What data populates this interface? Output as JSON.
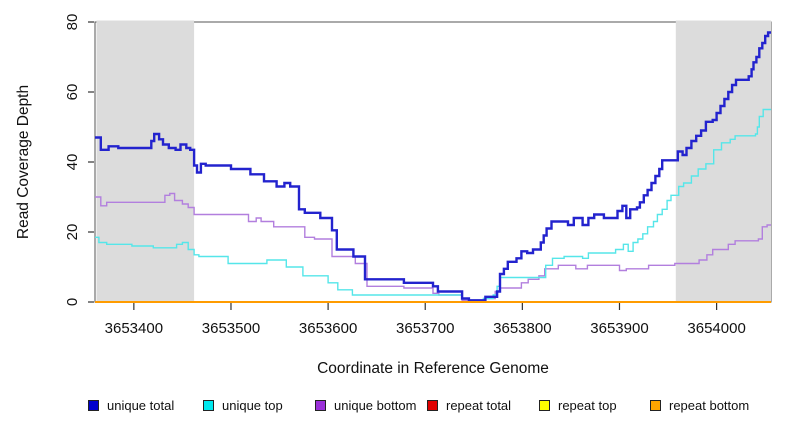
{
  "figure": {
    "x_axis_title": "Coordinate in Reference Genome",
    "y_axis_title": "Read Coverage Depth"
  },
  "chart_data": {
    "type": "line",
    "subtype": "step",
    "title": "",
    "xlabel": "Coordinate in Reference Genome",
    "ylabel": "Read Coverage Depth",
    "xlim": [
      3653360,
      3654056
    ],
    "ylim": [
      0,
      80
    ],
    "x_ticks": [
      3653400,
      3653500,
      3653600,
      3653700,
      3653800,
      3653900,
      3654000
    ],
    "y_ticks": [
      0,
      20,
      40,
      60,
      80
    ],
    "grid": false,
    "legend_position": "bottom",
    "box_color": "#555555",
    "shaded_regions": [
      {
        "x0": 3653360,
        "x1": 3653462,
        "color": "#dcdcdc"
      },
      {
        "x0": 3653958,
        "x1": 3654056,
        "color": "#dcdcdc"
      }
    ],
    "series": [
      {
        "name": "unique total",
        "color": "#2323ce",
        "width": 2.4,
        "points": [
          [
            3653360,
            47
          ],
          [
            3653366,
            43.5
          ],
          [
            3653374,
            44.5
          ],
          [
            3653384,
            44
          ],
          [
            3653418,
            46
          ],
          [
            3653421,
            48
          ],
          [
            3653426,
            46.5
          ],
          [
            3653430,
            45
          ],
          [
            3653436,
            44
          ],
          [
            3653443,
            43.5
          ],
          [
            3653448,
            45
          ],
          [
            3653454,
            44
          ],
          [
            3653458,
            43.5
          ],
          [
            3653462,
            39
          ],
          [
            3653465,
            37
          ],
          [
            3653469,
            39.5
          ],
          [
            3653474,
            39
          ],
          [
            3653500,
            38
          ],
          [
            3653520,
            36.5
          ],
          [
            3653534,
            34.5
          ],
          [
            3653547,
            33
          ],
          [
            3653555,
            34
          ],
          [
            3653561,
            33
          ],
          [
            3653570,
            26.5
          ],
          [
            3653576,
            25.5
          ],
          [
            3653592,
            24
          ],
          [
            3653604,
            20.5
          ],
          [
            3653609,
            15
          ],
          [
            3653626,
            13
          ],
          [
            3653638,
            6.5
          ],
          [
            3653678,
            5.5
          ],
          [
            3653708,
            4.5
          ],
          [
            3653713,
            3
          ],
          [
            3653738,
            1
          ],
          [
            3653745,
            0.5
          ],
          [
            3653762,
            1.5
          ],
          [
            3653774,
            3
          ],
          [
            3653777,
            8
          ],
          [
            3653781,
            9.5
          ],
          [
            3653785,
            11.5
          ],
          [
            3653794,
            12.5
          ],
          [
            3653799,
            14.5
          ],
          [
            3653805,
            14
          ],
          [
            3653811,
            15
          ],
          [
            3653819,
            17
          ],
          [
            3653822,
            19
          ],
          [
            3653825,
            21
          ],
          [
            3653830,
            23
          ],
          [
            3653847,
            22
          ],
          [
            3653853,
            24
          ],
          [
            3653862,
            22
          ],
          [
            3653868,
            24
          ],
          [
            3653874,
            25
          ],
          [
            3653884,
            24
          ],
          [
            3653898,
            26
          ],
          [
            3653903,
            27.5
          ],
          [
            3653907,
            24
          ],
          [
            3653911,
            26.5
          ],
          [
            3653918,
            27
          ],
          [
            3653921,
            28.5
          ],
          [
            3653925,
            30.5
          ],
          [
            3653929,
            32
          ],
          [
            3653933,
            34
          ],
          [
            3653937,
            36
          ],
          [
            3653941,
            38
          ],
          [
            3653944,
            40.5
          ],
          [
            3653960,
            43
          ],
          [
            3653965,
            42
          ],
          [
            3653969,
            44
          ],
          [
            3653974,
            46
          ],
          [
            3653979,
            47.5
          ],
          [
            3653984,
            49
          ],
          [
            3653989,
            51.5
          ],
          [
            3653996,
            52
          ],
          [
            3654000,
            54
          ],
          [
            3654004,
            56
          ],
          [
            3654008,
            58
          ],
          [
            3654012,
            60
          ],
          [
            3654016,
            62
          ],
          [
            3654020,
            63.5
          ],
          [
            3654033,
            64.5
          ],
          [
            3654036,
            66.5
          ],
          [
            3654038,
            68.5
          ],
          [
            3654041,
            70
          ],
          [
            3654044,
            72.5
          ],
          [
            3654047,
            74
          ],
          [
            3654050,
            76
          ],
          [
            3654053,
            77
          ]
        ]
      },
      {
        "name": "unique top",
        "color": "#55e6e9",
        "width": 1.4,
        "points": [
          [
            3653360,
            18.5
          ],
          [
            3653364,
            17
          ],
          [
            3653372,
            16.5
          ],
          [
            3653398,
            16
          ],
          [
            3653420,
            15.5
          ],
          [
            3653444,
            16.5
          ],
          [
            3653450,
            17
          ],
          [
            3653456,
            15
          ],
          [
            3653462,
            13.5
          ],
          [
            3653467,
            13
          ],
          [
            3653497,
            11
          ],
          [
            3653537,
            12
          ],
          [
            3653557,
            10
          ],
          [
            3653574,
            7.5
          ],
          [
            3653600,
            5.5
          ],
          [
            3653610,
            3.5
          ],
          [
            3653625,
            2
          ],
          [
            3653700,
            2
          ],
          [
            3653738,
            1
          ],
          [
            3653745,
            0.5
          ],
          [
            3653760,
            1
          ],
          [
            3653770,
            2
          ],
          [
            3653774,
            4.5
          ],
          [
            3653777,
            7
          ],
          [
            3653821,
            7
          ],
          [
            3653824,
            10.5
          ],
          [
            3653831,
            12.5
          ],
          [
            3653843,
            13
          ],
          [
            3653862,
            12.5
          ],
          [
            3653868,
            14
          ],
          [
            3653896,
            15
          ],
          [
            3653904,
            16.5
          ],
          [
            3653909,
            14.5
          ],
          [
            3653914,
            17
          ],
          [
            3653919,
            18
          ],
          [
            3653924,
            19.5
          ],
          [
            3653929,
            21.5
          ],
          [
            3653935,
            23
          ],
          [
            3653939,
            25
          ],
          [
            3653944,
            26.5
          ],
          [
            3653949,
            29
          ],
          [
            3653953,
            30.5
          ],
          [
            3653961,
            33
          ],
          [
            3653966,
            34
          ],
          [
            3653974,
            36
          ],
          [
            3653981,
            38
          ],
          [
            3653989,
            39.5
          ],
          [
            3653997,
            43.5
          ],
          [
            3654005,
            45.5
          ],
          [
            3654014,
            46.5
          ],
          [
            3654019,
            47.5
          ],
          [
            3654040,
            48
          ],
          [
            3654042,
            50
          ],
          [
            3654044,
            53
          ],
          [
            3654048,
            55
          ]
        ]
      },
      {
        "name": "unique bottom",
        "color": "#b27fde",
        "width": 1.4,
        "points": [
          [
            3653360,
            30
          ],
          [
            3653366,
            27.5
          ],
          [
            3653372,
            28.5
          ],
          [
            3653432,
            30.5
          ],
          [
            3653437,
            31
          ],
          [
            3653442,
            29
          ],
          [
            3653450,
            28
          ],
          [
            3653456,
            27
          ],
          [
            3653462,
            25
          ],
          [
            3653518,
            23
          ],
          [
            3653526,
            24
          ],
          [
            3653531,
            23
          ],
          [
            3653544,
            21.5
          ],
          [
            3653576,
            18.5
          ],
          [
            3653586,
            18
          ],
          [
            3653604,
            13
          ],
          [
            3653628,
            11
          ],
          [
            3653640,
            4.5
          ],
          [
            3653678,
            4
          ],
          [
            3653708,
            2.5
          ],
          [
            3653714,
            2
          ],
          [
            3653738,
            0.5
          ],
          [
            3653760,
            1
          ],
          [
            3653772,
            3
          ],
          [
            3653777,
            4
          ],
          [
            3653799,
            5.5
          ],
          [
            3653806,
            6.5
          ],
          [
            3653817,
            7.5
          ],
          [
            3653823,
            9.5
          ],
          [
            3653837,
            10.5
          ],
          [
            3653855,
            9.5
          ],
          [
            3653867,
            10.5
          ],
          [
            3653900,
            9
          ],
          [
            3653907,
            9.5
          ],
          [
            3653930,
            10.5
          ],
          [
            3653957,
            11
          ],
          [
            3653982,
            12
          ],
          [
            3653990,
            13.5
          ],
          [
            3653996,
            15
          ],
          [
            3654012,
            16.5
          ],
          [
            3654019,
            17.5
          ],
          [
            3654043,
            18
          ],
          [
            3654047,
            21.5
          ],
          [
            3654052,
            22
          ]
        ]
      },
      {
        "name": "repeat total",
        "color": "#dd0000",
        "width": 1.4,
        "points": [
          [
            3653360,
            0
          ],
          [
            3654056,
            0
          ]
        ]
      },
      {
        "name": "repeat top",
        "color": "#ffff00",
        "width": 1.4,
        "points": [
          [
            3653360,
            0
          ],
          [
            3654056,
            0
          ]
        ]
      },
      {
        "name": "repeat bottom",
        "color": "#ff9c00",
        "width": 2.0,
        "points": [
          [
            3653360,
            0
          ],
          [
            3654056,
            0
          ]
        ]
      }
    ],
    "legend": [
      {
        "label": "unique total",
        "color": "#0000cc"
      },
      {
        "label": "unique top",
        "color": "#00e8ee"
      },
      {
        "label": "unique bottom",
        "color": "#9b30d9"
      },
      {
        "label": "repeat total",
        "color": "#e00000"
      },
      {
        "label": "repeat top",
        "color": "#ffff00"
      },
      {
        "label": "repeat bottom",
        "color": "#ffa500"
      }
    ]
  }
}
